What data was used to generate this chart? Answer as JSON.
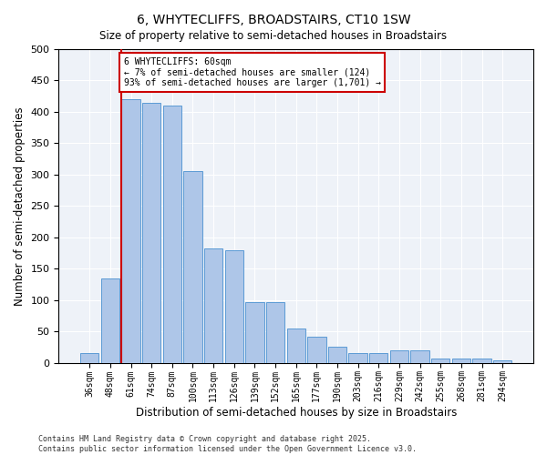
{
  "title": "6, WHYTECLIFFS, BROADSTAIRS, CT10 1SW",
  "subtitle": "Size of property relative to semi-detached houses in Broadstairs",
  "xlabel": "Distribution of semi-detached houses by size in Broadstairs",
  "ylabel": "Number of semi-detached properties",
  "categories": [
    "36sqm",
    "48sqm",
    "61sqm",
    "74sqm",
    "87sqm",
    "100sqm",
    "113sqm",
    "126sqm",
    "139sqm",
    "152sqm",
    "165sqm",
    "177sqm",
    "190sqm",
    "203sqm",
    "216sqm",
    "229sqm",
    "242sqm",
    "255sqm",
    "268sqm",
    "281sqm",
    "294sqm"
  ],
  "values": [
    15,
    135,
    420,
    415,
    410,
    305,
    182,
    180,
    96,
    96,
    54,
    42,
    26,
    15,
    15,
    20,
    20,
    6,
    6,
    6,
    4
  ],
  "bar_color": "#aec6e8",
  "bar_edge_color": "#5b9bd5",
  "highlight_line_index": 2,
  "annotation_title": "6 WHYTECLIFFS: 60sqm",
  "annotation_line1": "← 7% of semi-detached houses are smaller (124)",
  "annotation_line2": "93% of semi-detached houses are larger (1,701) →",
  "annotation_box_color": "#cc0000",
  "footer_line1": "Contains HM Land Registry data © Crown copyright and database right 2025.",
  "footer_line2": "Contains public sector information licensed under the Open Government Licence v3.0.",
  "bg_color": "#eef2f8",
  "ylim": [
    0,
    500
  ],
  "yticks": [
    0,
    50,
    100,
    150,
    200,
    250,
    300,
    350,
    400,
    450,
    500
  ]
}
